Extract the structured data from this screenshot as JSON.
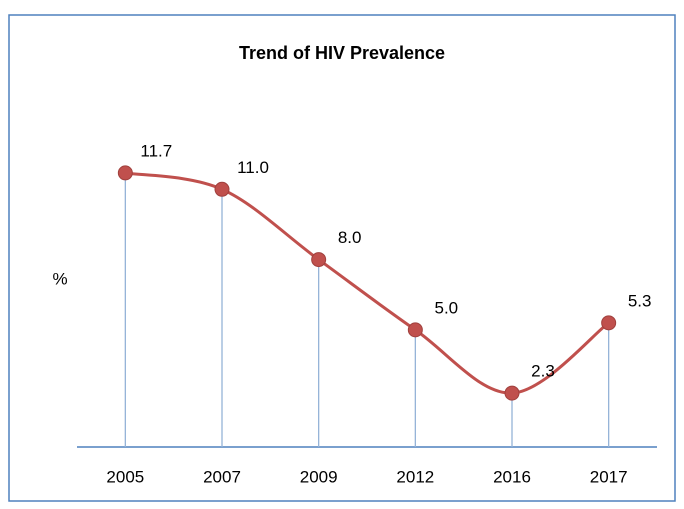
{
  "chart_data": {
    "type": "line",
    "title": "Trend of HIV Prevalence",
    "ylabel": "%",
    "categories": [
      "2005",
      "2007",
      "2009",
      "2012",
      "2016",
      "2017"
    ],
    "series": [
      {
        "name": "HIV Prevalence",
        "color": "#c0504d",
        "values": [
          11.7,
          11,
          8,
          5,
          2.3,
          5.3
        ],
        "value_labels": [
          "11.7",
          "11.0",
          "8.0",
          "5.0",
          "2.3",
          "5.3"
        ]
      }
    ],
    "ylim": [
      0,
      14
    ],
    "smooth": true,
    "drop_lines": true
  }
}
